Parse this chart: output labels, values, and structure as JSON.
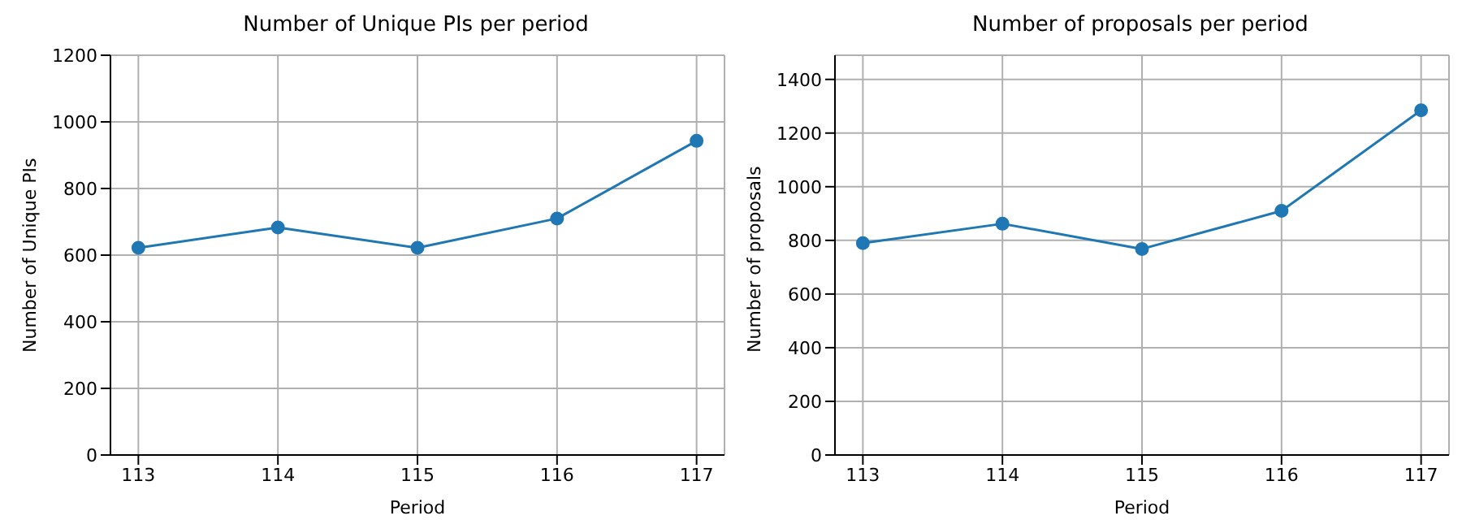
{
  "chart_data": [
    {
      "type": "line",
      "title": "Number of Unique PIs per period",
      "xlabel": "Period",
      "ylabel": "Number of Unique PIs",
      "x": [
        113,
        114,
        115,
        116,
        117
      ],
      "series": [
        {
          "color": "#1f77b4",
          "values": [
            622,
            683,
            622,
            710,
            943
          ]
        }
      ],
      "xlim": [
        112.8,
        117.2
      ],
      "xticks": [
        113,
        114,
        115,
        116,
        117
      ],
      "ylim": [
        0,
        1200
      ],
      "yticks": [
        0,
        200,
        400,
        600,
        800,
        1000,
        1200
      ],
      "grid": true,
      "marker": "circle",
      "line_style": "solid"
    },
    {
      "type": "line",
      "title": "Number of proposals per period",
      "xlabel": "Period",
      "ylabel": "Number of proposals",
      "x": [
        113,
        114,
        115,
        116,
        117
      ],
      "series": [
        {
          "color": "#1f77b4",
          "values": [
            790,
            862,
            768,
            910,
            1285
          ]
        }
      ],
      "xlim": [
        112.8,
        117.2
      ],
      "xticks": [
        113,
        114,
        115,
        116,
        117
      ],
      "ylim": [
        0,
        1490
      ],
      "yticks": [
        0,
        200,
        400,
        600,
        800,
        1000,
        1200,
        1400
      ],
      "grid": true,
      "marker": "circle",
      "line_style": "solid"
    }
  ]
}
